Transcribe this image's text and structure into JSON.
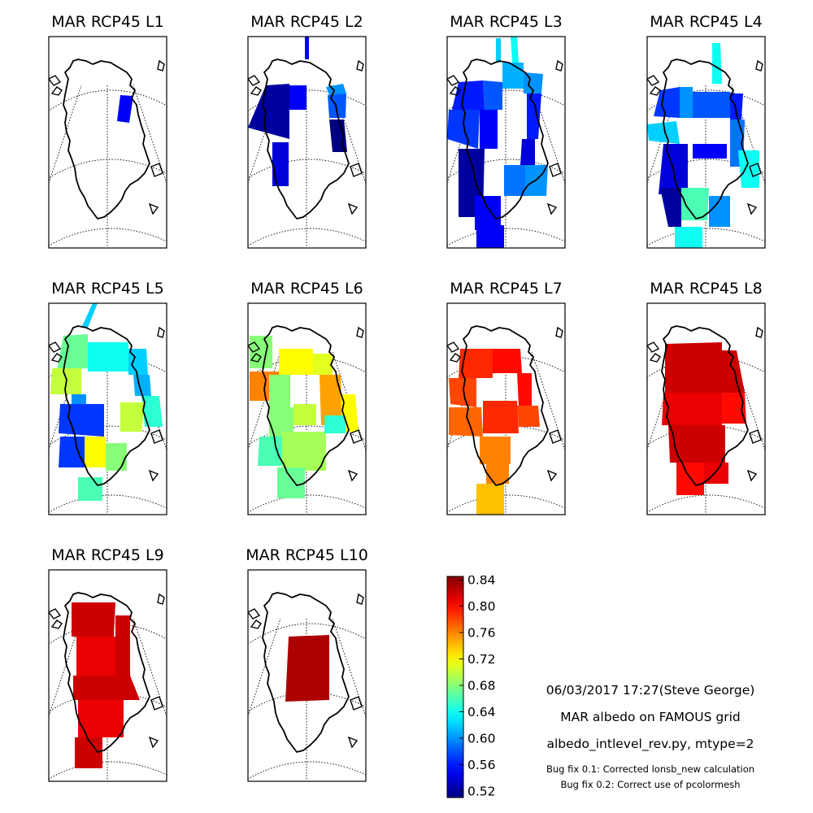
{
  "chart_data": {
    "type": "heatmap",
    "variable": "MAR albedo",
    "colormap": "jet",
    "colorbar": {
      "min": 0.51,
      "max": 0.845,
      "ticks": [
        0.84,
        0.8,
        0.76,
        0.72,
        0.68,
        0.64,
        0.6,
        0.56,
        0.52
      ]
    },
    "panels": [
      {
        "title": "MAR RCP45 L1",
        "cells": [
          {
            "value": 0.55
          }
        ]
      },
      {
        "title": "MAR RCP45 L2",
        "cells": [
          {
            "value": 0.52
          },
          {
            "value": 0.55
          },
          {
            "value": 0.6
          },
          {
            "value": 0.54
          },
          {
            "value": 0.58
          },
          {
            "value": 0.51
          },
          {
            "value": 0.55
          }
        ]
      },
      {
        "title": "MAR RCP45 L3",
        "cells": [
          {
            "value": 0.56
          },
          {
            "value": 0.58
          },
          {
            "value": 0.61
          },
          {
            "value": 0.6
          },
          {
            "value": 0.57
          },
          {
            "value": 0.52
          },
          {
            "value": 0.55
          },
          {
            "value": 0.56
          },
          {
            "value": 0.54
          },
          {
            "value": 0.59
          },
          {
            "value": 0.6
          },
          {
            "value": 0.55
          },
          {
            "value": 0.62
          },
          {
            "value": 0.64
          },
          {
            "value": 0.55
          }
        ]
      },
      {
        "title": "MAR RCP45 L4",
        "cells": [
          {
            "value": 0.64
          },
          {
            "value": 0.57
          },
          {
            "value": 0.6
          },
          {
            "value": 0.58
          },
          {
            "value": 0.56
          },
          {
            "value": 0.62
          },
          {
            "value": 0.54
          },
          {
            "value": 0.59
          },
          {
            "value": 0.64
          },
          {
            "value": 0.52
          },
          {
            "value": 0.55
          },
          {
            "value": 0.66
          },
          {
            "value": 0.6
          },
          {
            "value": 0.64
          }
        ]
      },
      {
        "title": "MAR RCP45 L5",
        "cells": [
          {
            "value": 0.62
          },
          {
            "value": 0.67
          },
          {
            "value": 0.64
          },
          {
            "value": 0.62
          },
          {
            "value": 0.7
          },
          {
            "value": 0.6
          },
          {
            "value": 0.61
          },
          {
            "value": 0.65
          },
          {
            "value": 0.7
          },
          {
            "value": 0.57
          },
          {
            "value": 0.57
          },
          {
            "value": 0.72
          },
          {
            "value": 0.68
          },
          {
            "value": 0.66
          }
        ]
      },
      {
        "title": "MAR RCP45 L6",
        "cells": [
          {
            "value": 0.76
          },
          {
            "value": 0.72
          },
          {
            "value": 0.71
          },
          {
            "value": 0.68
          },
          {
            "value": 0.75
          },
          {
            "value": 0.68
          },
          {
            "value": 0.7
          },
          {
            "value": 0.72
          },
          {
            "value": 0.66
          },
          {
            "value": 0.69
          },
          {
            "value": 0.65
          },
          {
            "value": 0.67
          },
          {
            "value": 0.68
          }
        ]
      },
      {
        "title": "MAR RCP45 L7",
        "cells": [
          {
            "value": 0.79
          },
          {
            "value": 0.8
          },
          {
            "value": 0.78
          },
          {
            "value": 0.8
          },
          {
            "value": 0.77
          },
          {
            "value": 0.79
          },
          {
            "value": 0.78
          },
          {
            "value": 0.76
          },
          {
            "value": 0.76
          },
          {
            "value": 0.74
          }
        ]
      },
      {
        "title": "MAR RCP45 L8",
        "cells": [
          {
            "value": 0.82
          },
          {
            "value": 0.82
          },
          {
            "value": 0.81
          },
          {
            "value": 0.8
          },
          {
            "value": 0.82
          },
          {
            "value": 0.8
          },
          {
            "value": 0.81
          }
        ]
      },
      {
        "title": "MAR RCP45 L9",
        "cells": [
          {
            "value": 0.82
          },
          {
            "value": 0.82
          },
          {
            "value": 0.81
          },
          {
            "value": 0.82
          },
          {
            "value": 0.81
          },
          {
            "value": 0.82
          }
        ]
      },
      {
        "title": "MAR RCP45 L10",
        "cells": [
          {
            "value": 0.83
          }
        ]
      }
    ]
  },
  "notes": {
    "timestamp": "06/03/2017 17:27(Steve George)",
    "description": "MAR albedo on FAMOUS grid",
    "script": "albedo_intlevel_rev.py, mtype=2",
    "bugfix1": "Bug fix 0.1: Corrected lonsb_new calculation",
    "bugfix2": "Bug fix 0.2: Correct use of pcolormesh"
  }
}
